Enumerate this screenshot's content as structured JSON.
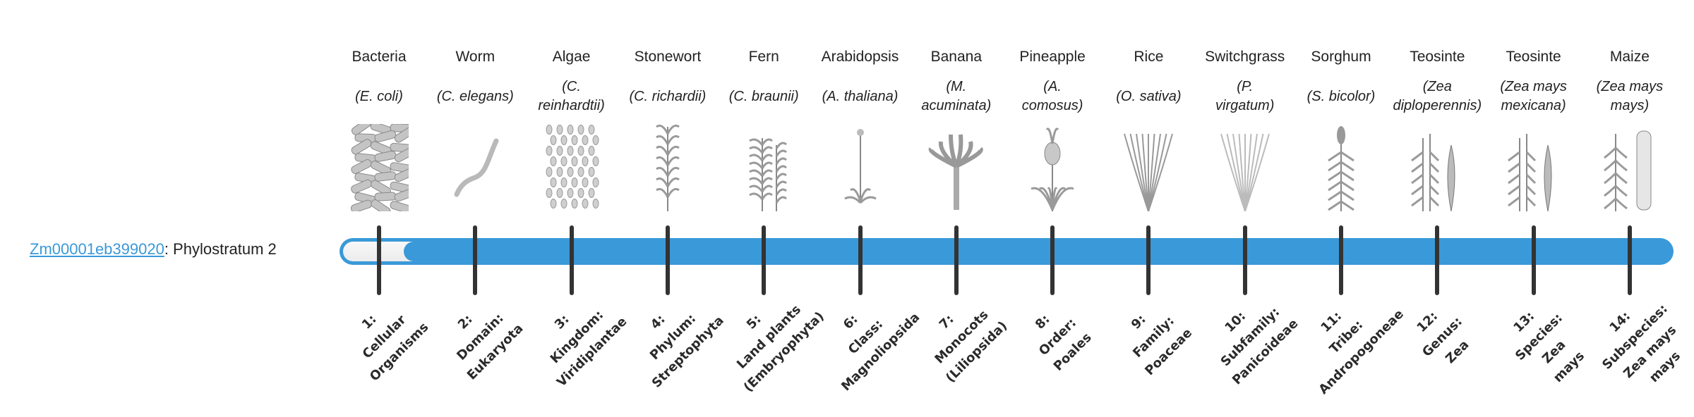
{
  "gene": {
    "id": "Zm00001eb399020",
    "suffix": ": Phylostratum 2",
    "phylostratum": 2
  },
  "colors": {
    "accent": "#3a99d8",
    "tick": "#333333",
    "illustration": "#9a9a9a"
  },
  "organisms": [
    {
      "common": "Bacteria",
      "scientific": "(E. coli)",
      "icon": "bacteria-icon"
    },
    {
      "common": "Worm",
      "scientific": "(C. elegans)",
      "icon": "worm-icon"
    },
    {
      "common": "Algae",
      "scientific": "(C.\nreinhardtii)",
      "icon": "algae-icon"
    },
    {
      "common": "Stonewort",
      "scientific": "(C. richardii)",
      "icon": "stonewort-icon"
    },
    {
      "common": "Fern",
      "scientific": "(C. braunii)",
      "icon": "fern-icon"
    },
    {
      "common": "Arabidopsis",
      "scientific": "(A. thaliana)",
      "icon": "arabidopsis-icon"
    },
    {
      "common": "Banana",
      "scientific": "(M.\nacuminata)",
      "icon": "banana-icon"
    },
    {
      "common": "Pineapple",
      "scientific": "(A.\ncomosus)",
      "icon": "pineapple-icon"
    },
    {
      "common": "Rice",
      "scientific": "(O. sativa)",
      "icon": "rice-icon"
    },
    {
      "common": "Switchgrass",
      "scientific": "(P.\nvirgatum)",
      "icon": "switchgrass-icon"
    },
    {
      "common": "Sorghum",
      "scientific": "(S. bicolor)",
      "icon": "sorghum-icon"
    },
    {
      "common": "Teosinte",
      "scientific": "(Zea\ndiploperennis)",
      "icon": "teosinte-icon"
    },
    {
      "common": "Teosinte",
      "scientific": "(Zea mays\nmexicana)",
      "icon": "teosinte-icon"
    },
    {
      "common": "Maize",
      "scientific": "(Zea mays\nmays)",
      "icon": "maize-icon"
    }
  ],
  "strata": [
    "1:\nCellular\nOrganisms",
    "2:\nDomain:\nEukaryota",
    "3:\nKingdom:\nViridiplantae",
    "4:\nPhylum:\nStreptophyta",
    "5:\nLand plants\n(Embryophyta)",
    "6:\nClass:\nMagnoliopsida",
    "7:\nMonocots\n(Liliopsida)",
    "8:\nOrder:\nPoales",
    "9:\nFamily:\nPoaceae",
    "10:\nSubfamily:\nPanicoideae",
    "11:\nTribe:\nAndropogoneae",
    "12:\nGenus:\nZea",
    "13:\nSpecies:\nZea\nmays",
    "14:\nSubspecies:\nZea mays\nmays"
  ]
}
